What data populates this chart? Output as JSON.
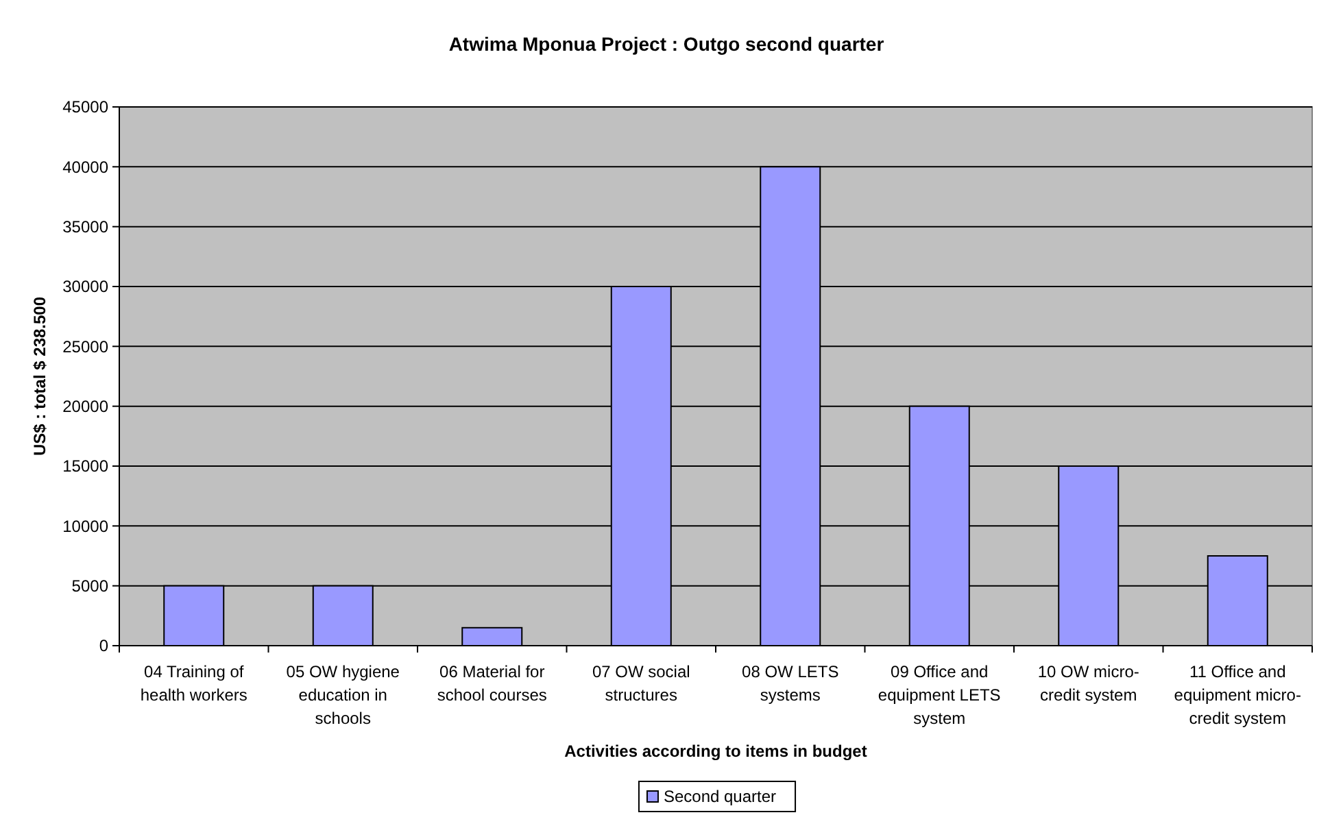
{
  "chart_data": {
    "type": "bar",
    "title": "Atwima Mponua Project : Outgo second quarter",
    "xlabel": "Activities according to items in budget",
    "ylabel": "US$ : total $ 238.500",
    "categories": [
      "04 Training of health workers",
      "05 OW hygiene education in schools",
      "06 Material for school courses",
      "07 OW social structures",
      "08 OW LETS systems",
      "09 Office and equipment LETS system",
      "10 OW micro-credit system",
      "11 Office and equipment micro-credit system"
    ],
    "series": [
      {
        "name": "Second quarter",
        "color": "#9999ff",
        "values": [
          5000,
          5000,
          1500,
          30000,
          40000,
          20000,
          15000,
          7500
        ]
      }
    ],
    "ylim": [
      0,
      45000
    ],
    "yticks": [
      0,
      5000,
      10000,
      15000,
      20000,
      25000,
      30000,
      35000,
      40000,
      45000
    ],
    "grid": "y",
    "legend": "bottom"
  }
}
